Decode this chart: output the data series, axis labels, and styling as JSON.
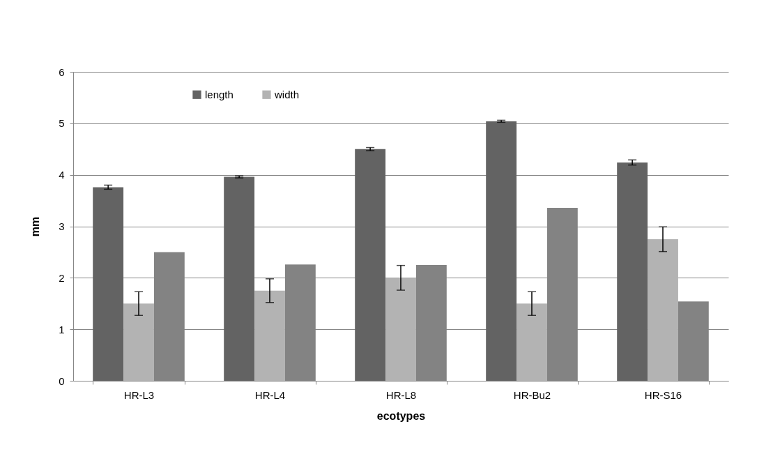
{
  "chart_data": {
    "type": "bar",
    "xlabel": "ecotypes",
    "ylabel": "mm",
    "categories": [
      "HR-L3",
      "HR-L4",
      "HR-L8",
      "HR-Bu2",
      "HR-S16"
    ],
    "series": [
      {
        "name": "length",
        "color": "#636363",
        "values": [
          3.76,
          3.96,
          4.5,
          5.04,
          4.24
        ],
        "errors": [
          0.04,
          0.02,
          0.03,
          0.02,
          0.05
        ]
      },
      {
        "name": "width",
        "color": "#b3b3b3",
        "values": [
          1.5,
          1.75,
          2.0,
          1.5,
          2.75
        ],
        "errors": [
          0.23,
          0.23,
          0.24,
          0.23,
          0.24
        ]
      },
      {
        "color": "#838383",
        "values": [
          2.5,
          2.26,
          2.25,
          3.36,
          1.54
        ]
      }
    ],
    "ylim": [
      0,
      6
    ],
    "yticks": [
      0,
      1,
      2,
      3,
      4,
      5,
      6
    ],
    "grid": "y",
    "legend": "top left"
  }
}
